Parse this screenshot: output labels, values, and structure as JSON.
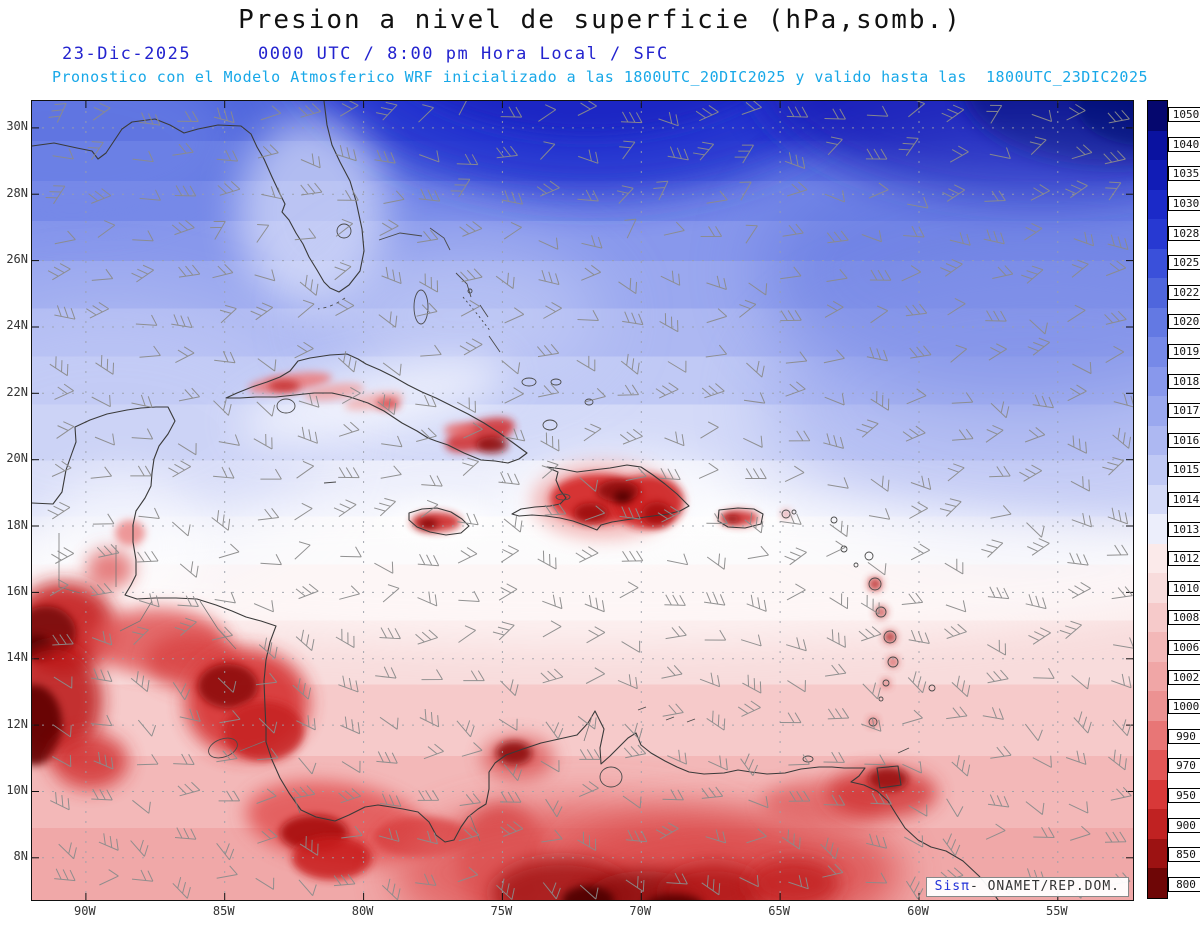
{
  "header": {
    "title": "Presion a nivel de superficie (hPa,somb.)",
    "date": "23-Dic-2025",
    "time_info": "0000 UTC / 8:00 pm Hora Local / SFC",
    "forecast_info": "Pronostico con el Modelo Atmosferico WRF inicializado a las 1800UTC_20DIC2025 y valido hasta las  1800UTC_23DIC2025"
  },
  "map": {
    "lat_labels": [
      "30N",
      "28N",
      "26N",
      "24N",
      "22N",
      "20N",
      "18N",
      "16N",
      "14N",
      "12N",
      "10N",
      "8N"
    ],
    "lon_labels": [
      "90W",
      "85W",
      "80W",
      "75W",
      "70W",
      "65W",
      "60W",
      "55W"
    ],
    "watermark": {
      "brand": "Sisπ",
      "text": "- ONAMET/REP.DOM."
    }
  },
  "colorbar": {
    "unit": "hPa",
    "values": [
      "1050",
      "1040",
      "1035",
      "1030",
      "1028",
      "1025",
      "1022",
      "1020",
      "1019",
      "1018",
      "1017",
      "1016",
      "1015",
      "1014",
      "1013",
      "1012",
      "1010",
      "1008",
      "1006",
      "1002",
      "1000",
      "990",
      "970",
      "950",
      "900",
      "850",
      "800"
    ],
    "colors": [
      "#05076e",
      "#0a12a0",
      "#111cb6",
      "#1b2ac8",
      "#2739d2",
      "#3a50da",
      "#4f66dd",
      "#6379e3",
      "#7689e8",
      "#8898ec",
      "#9aa8ef",
      "#adb8f2",
      "#c0c9f5",
      "#d4daf8",
      "#eceefb",
      "#fbeaea",
      "#f8dcdc",
      "#f6caca",
      "#f3b8b8",
      "#f0a6a6",
      "#ec9292",
      "#e87676",
      "#e25656",
      "#d83838",
      "#c02222",
      "#9c1212",
      "#6e0606"
    ]
  },
  "chart_data": {
    "type": "heatmap",
    "title": "Presion a nivel de superficie (hPa,somb.)",
    "variable": "surface pressure",
    "unit": "hPa",
    "lat_ticks": [
      "30N",
      "28N",
      "26N",
      "24N",
      "22N",
      "20N",
      "18N",
      "16N",
      "14N",
      "12N",
      "10N",
      "8N"
    ],
    "lon_ticks": [
      "90W",
      "85W",
      "80W",
      "75W",
      "70W",
      "65W",
      "60W",
      "55W"
    ],
    "scale_values": [
      1050,
      1040,
      1035,
      1030,
      1028,
      1025,
      1022,
      1020,
      1019,
      1018,
      1017,
      1016,
      1015,
      1014,
      1013,
      1012,
      1010,
      1008,
      1006,
      1002,
      1000,
      990,
      970,
      950,
      900,
      850,
      800
    ],
    "legend_position": "right"
  }
}
